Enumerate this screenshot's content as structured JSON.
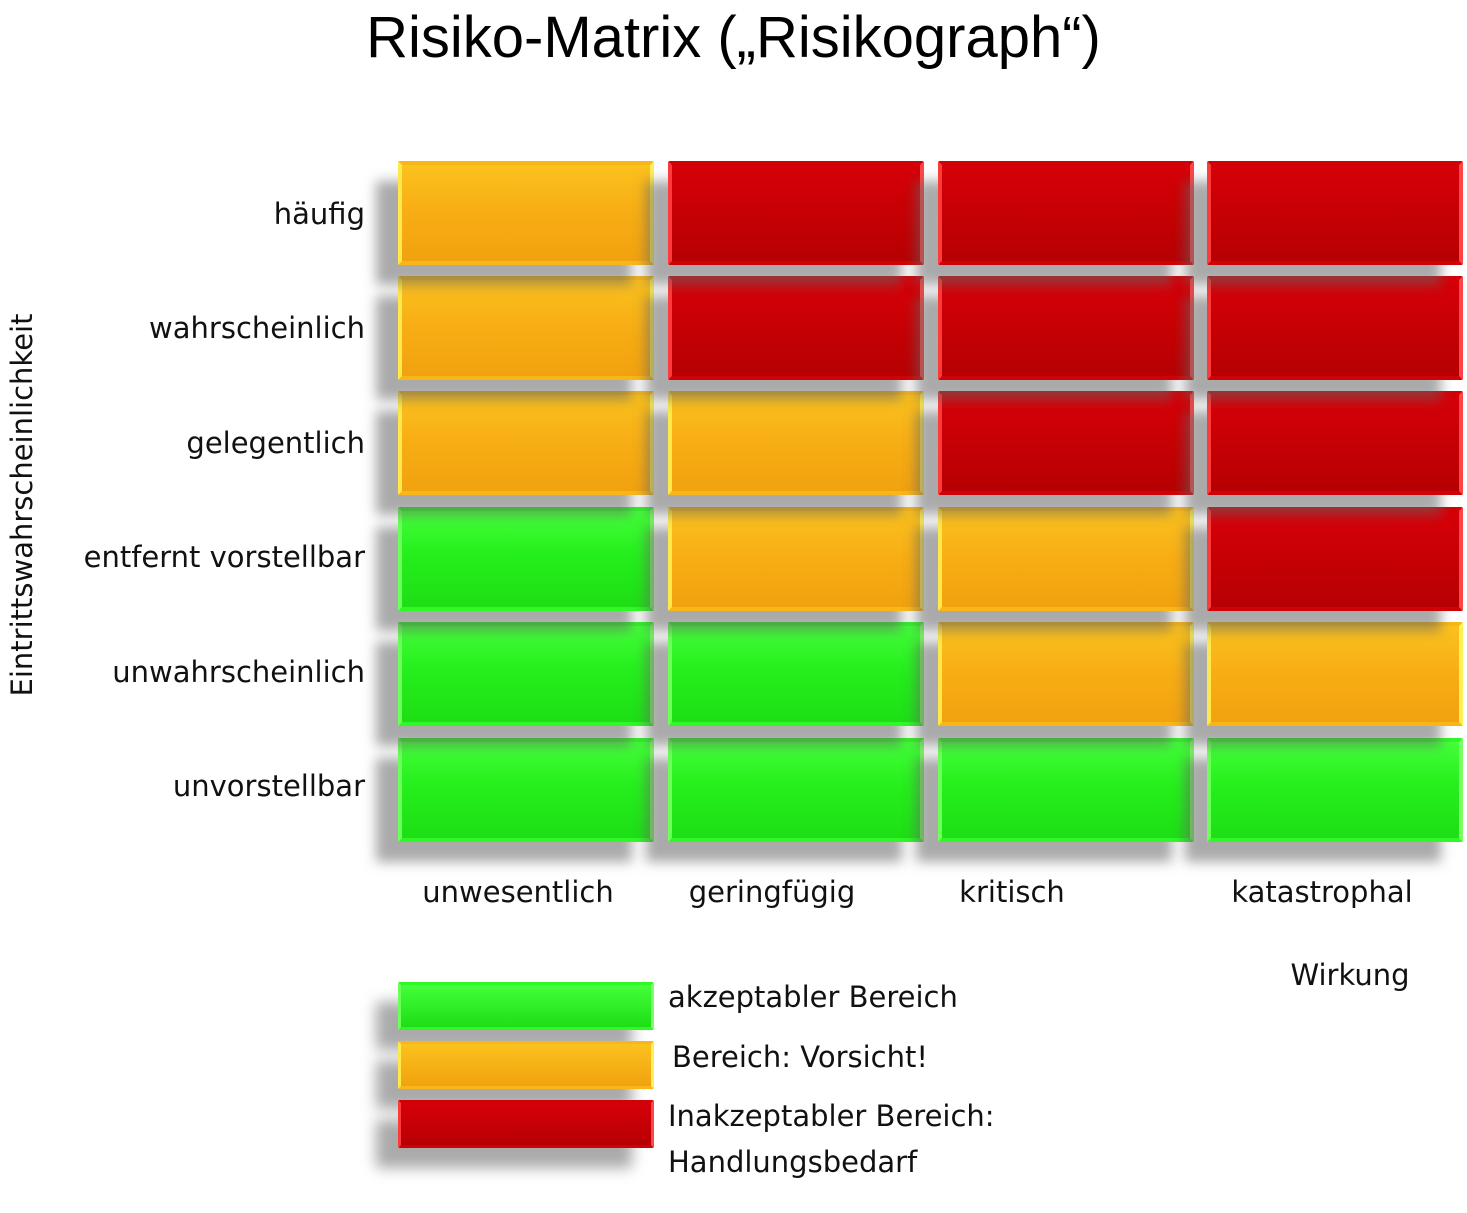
{
  "title": "Risiko-Matrix („Risikograph“)",
  "y_axis_title": "Eintrittswahrscheinlichkeit",
  "x_axis_title": "Wirkung",
  "rows": [
    "häufig",
    "wahrscheinlich",
    "gelegentlich",
    "entfernt vorstellbar",
    "unwahrscheinlich",
    "unvorstellbar"
  ],
  "columns": [
    "unwesentlich",
    "geringfügig",
    "kritisch",
    "katastrophal"
  ],
  "matrix": [
    [
      "orange",
      "red",
      "red",
      "red"
    ],
    [
      "orange",
      "red",
      "red",
      "red"
    ],
    [
      "orange",
      "orange",
      "red",
      "red"
    ],
    [
      "green",
      "orange",
      "orange",
      "red"
    ],
    [
      "green",
      "green",
      "orange",
      "orange"
    ],
    [
      "green",
      "green",
      "green",
      "green"
    ]
  ],
  "legend": [
    {
      "color": "green",
      "lines": [
        "akzeptabler Bereich"
      ]
    },
    {
      "color": "orange",
      "lines": [
        "Bereich: Vorsicht!"
      ]
    },
    {
      "color": "red",
      "lines": [
        "Inakzeptabler Bereich:",
        "Handlungsbedarf"
      ]
    }
  ],
  "colors": {
    "green": "#25ef1c",
    "orange": "#f7ad14",
    "red": "#c60004"
  }
}
